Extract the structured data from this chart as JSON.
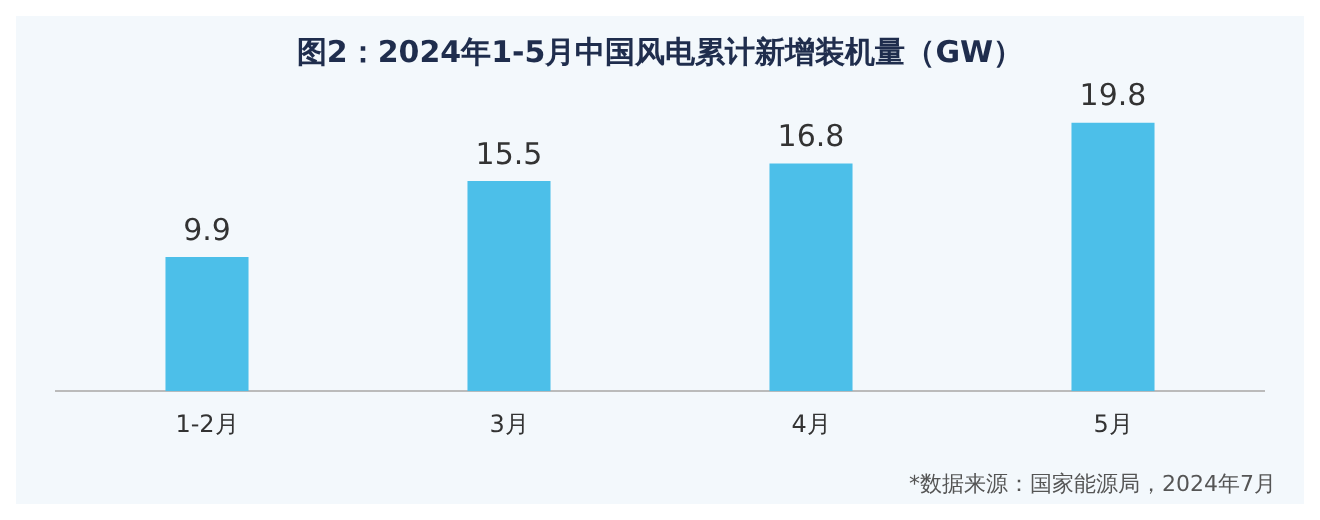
{
  "chart_data": {
    "type": "bar",
    "title": "图2：2024年1-5月中国风电累计新增装机量（GW）",
    "categories": [
      "1-2月",
      "3月",
      "4月",
      "5月"
    ],
    "values": [
      9.9,
      15.5,
      16.8,
      19.8
    ],
    "color": "#4cbfe9",
    "data_labels": true,
    "grid": false,
    "legend": false,
    "annotations": [
      "*数据来源：国家能源局，2024年7月"
    ]
  }
}
